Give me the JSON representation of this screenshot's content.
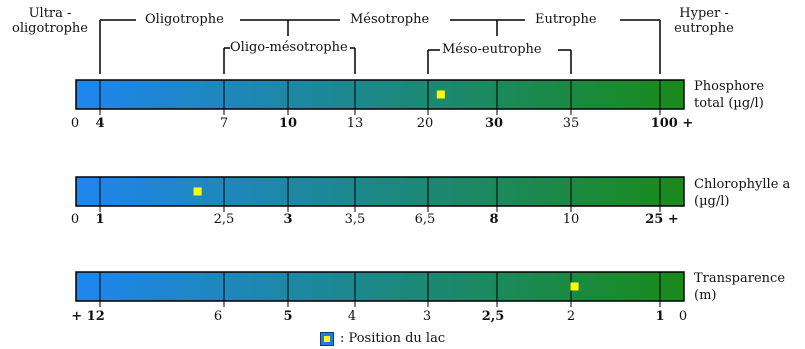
{
  "top_labels": {
    "ultra_oligotrophe": "Ultra -\noligotrophe",
    "oligotrophe": "Oligotrophe",
    "mesotrophe": "Mésotrophe",
    "eutrophe": "Eutrophe",
    "hyper_eutrophe": "Hyper -\neutrophe",
    "oligo_mesotrophe": "Oligo-mésotrophe",
    "meso_eutrophe": "Méso-eutrophe"
  },
  "scales": [
    {
      "label": "Phosphore\ntotal (µg/l)",
      "ticks": [
        {
          "text": "0",
          "bold": false
        },
        {
          "text": "4",
          "bold": true
        },
        {
          "text": "7",
          "bold": false
        },
        {
          "text": "10",
          "bold": true
        },
        {
          "text": "13",
          "bold": false
        },
        {
          "text": "20",
          "bold": false
        },
        {
          "text": "30",
          "bold": true
        },
        {
          "text": "35",
          "bold": false
        },
        {
          "text": "100 +",
          "bold": true
        }
      ],
      "lake_position": 0.6
    },
    {
      "label": "Chlorophylle a\n(µg/l)",
      "ticks": [
        {
          "text": "0",
          "bold": false
        },
        {
          "text": "1",
          "bold": true
        },
        {
          "text": "2,5",
          "bold": false
        },
        {
          "text": "3",
          "bold": true
        },
        {
          "text": "3,5",
          "bold": false
        },
        {
          "text": "6,5",
          "bold": false
        },
        {
          "text": "8",
          "bold": true
        },
        {
          "text": "10",
          "bold": false
        },
        {
          "text": "25 +",
          "bold": true
        }
      ],
      "lake_position": 0.2
    },
    {
      "label": "Transparence\n(m)",
      "ticks": [
        {
          "text": "+ 12",
          "bold": true
        },
        {
          "text": "6",
          "bold": false
        },
        {
          "text": "5",
          "bold": true
        },
        {
          "text": "4",
          "bold": false
        },
        {
          "text": "3",
          "bold": false
        },
        {
          "text": "2,5",
          "bold": true
        },
        {
          "text": "2",
          "bold": false
        },
        {
          "text": "1",
          "bold": true
        },
        {
          "text": "0",
          "bold": false
        }
      ],
      "lake_position": 0.82
    }
  ],
  "legend": {
    "label": ":  Position du lac"
  },
  "colors": {
    "bar_start": "#1f86f0",
    "bar_end": "#1a8a1a",
    "lake_marker": "#ffff00",
    "lines": "#000000"
  }
}
